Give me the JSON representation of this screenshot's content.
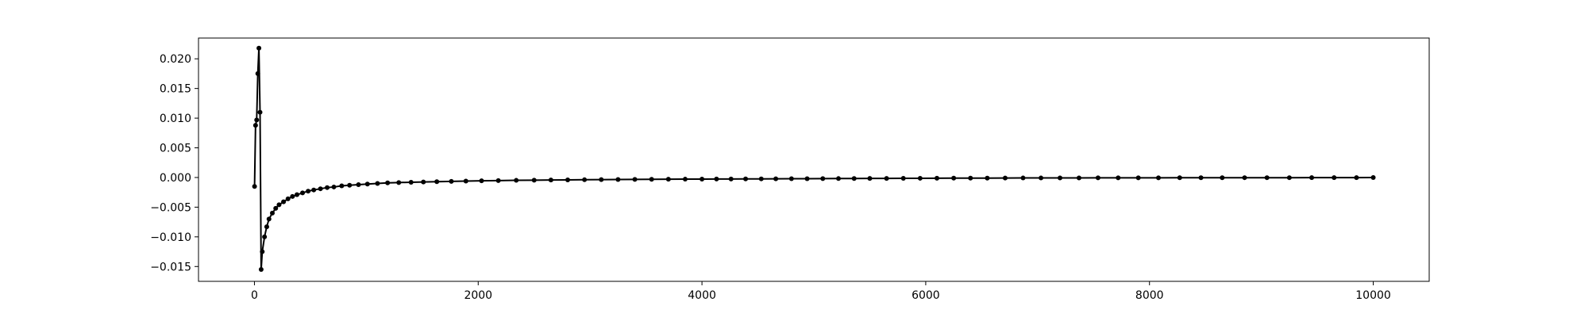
{
  "chart_data": {
    "type": "line",
    "title": "",
    "xlabel": "",
    "ylabel": "",
    "xlim": [
      -500,
      10500
    ],
    "ylim": [
      -0.0175,
      0.0235
    ],
    "x_ticks": [
      0,
      2000,
      4000,
      6000,
      8000,
      10000
    ],
    "x_tick_labels": [
      "0",
      "2000",
      "4000",
      "6000",
      "8000",
      "10000"
    ],
    "y_ticks": [
      -0.015,
      -0.01,
      -0.005,
      0.0,
      0.005,
      0.01,
      0.015,
      0.02
    ],
    "y_tick_labels": [
      "−0.015",
      "−0.010",
      "−0.005",
      "0.000",
      "0.005",
      "0.010",
      "0.015",
      "0.020"
    ],
    "grid": false,
    "legend": "none",
    "line_color": "#000000",
    "marker": "circle",
    "series": [
      {
        "x": [
          1,
          10,
          20,
          30,
          40,
          50,
          60,
          70,
          90,
          110,
          130,
          160,
          190,
          220,
          260,
          300,
          340,
          380,
          430,
          480,
          530,
          590,
          650,
          710,
          780,
          850,
          930,
          1010,
          1100,
          1190,
          1290,
          1400,
          1510,
          1630,
          1760,
          1890,
          2030,
          2180,
          2340,
          2500,
          2650,
          2800,
          2950,
          3100,
          3250,
          3400,
          3550,
          3700,
          3850,
          4000,
          4130,
          4260,
          4390,
          4530,
          4660,
          4800,
          4940,
          5080,
          5220,
          5360,
          5500,
          5650,
          5800,
          5950,
          6100,
          6250,
          6400,
          6550,
          6710,
          6870,
          7030,
          7200,
          7370,
          7540,
          7720,
          7900,
          8080,
          8270,
          8460,
          8650,
          8850,
          9050,
          9250,
          9450,
          9650,
          9850,
          10000
        ],
        "values": [
          -0.0015,
          0.0088,
          0.0097,
          0.0175,
          0.0218,
          0.011,
          -0.0155,
          -0.0125,
          -0.01,
          -0.0083,
          -0.007,
          -0.006,
          -0.0052,
          -0.0046,
          -0.0041,
          -0.0036,
          -0.0032,
          -0.0029,
          -0.0026,
          -0.0023,
          -0.0021,
          -0.0019,
          -0.0017,
          -0.0016,
          -0.0014,
          -0.0013,
          -0.0012,
          -0.0011,
          -0.001,
          -0.0009,
          -0.00085,
          -0.0008,
          -0.00075,
          -0.0007,
          -0.00065,
          -0.0006,
          -0.00056,
          -0.00052,
          -0.00048,
          -0.00045,
          -0.00042,
          -0.0004,
          -0.00038,
          -0.00036,
          -0.00034,
          -0.00032,
          -0.0003,
          -0.00029,
          -0.00028,
          -0.00027,
          -0.00026,
          -0.00025,
          -0.00024,
          -0.00023,
          -0.00022,
          -0.00021,
          -0.0002,
          -0.00019,
          -0.00018,
          -0.00017,
          -0.00016,
          -0.00015,
          -0.00014,
          -0.00013,
          -0.00012,
          -0.00011,
          -0.0001,
          -0.0001,
          -9e-05,
          -8e-05,
          -8e-05,
          -7e-05,
          -7e-05,
          -6e-05,
          -6e-05,
          -5e-05,
          -5e-05,
          -4e-05,
          -4e-05,
          -4e-05,
          -3e-05,
          -3e-05,
          -3e-05,
          -2e-05,
          -2e-05,
          -2e-05,
          -1e-05
        ]
      }
    ]
  }
}
